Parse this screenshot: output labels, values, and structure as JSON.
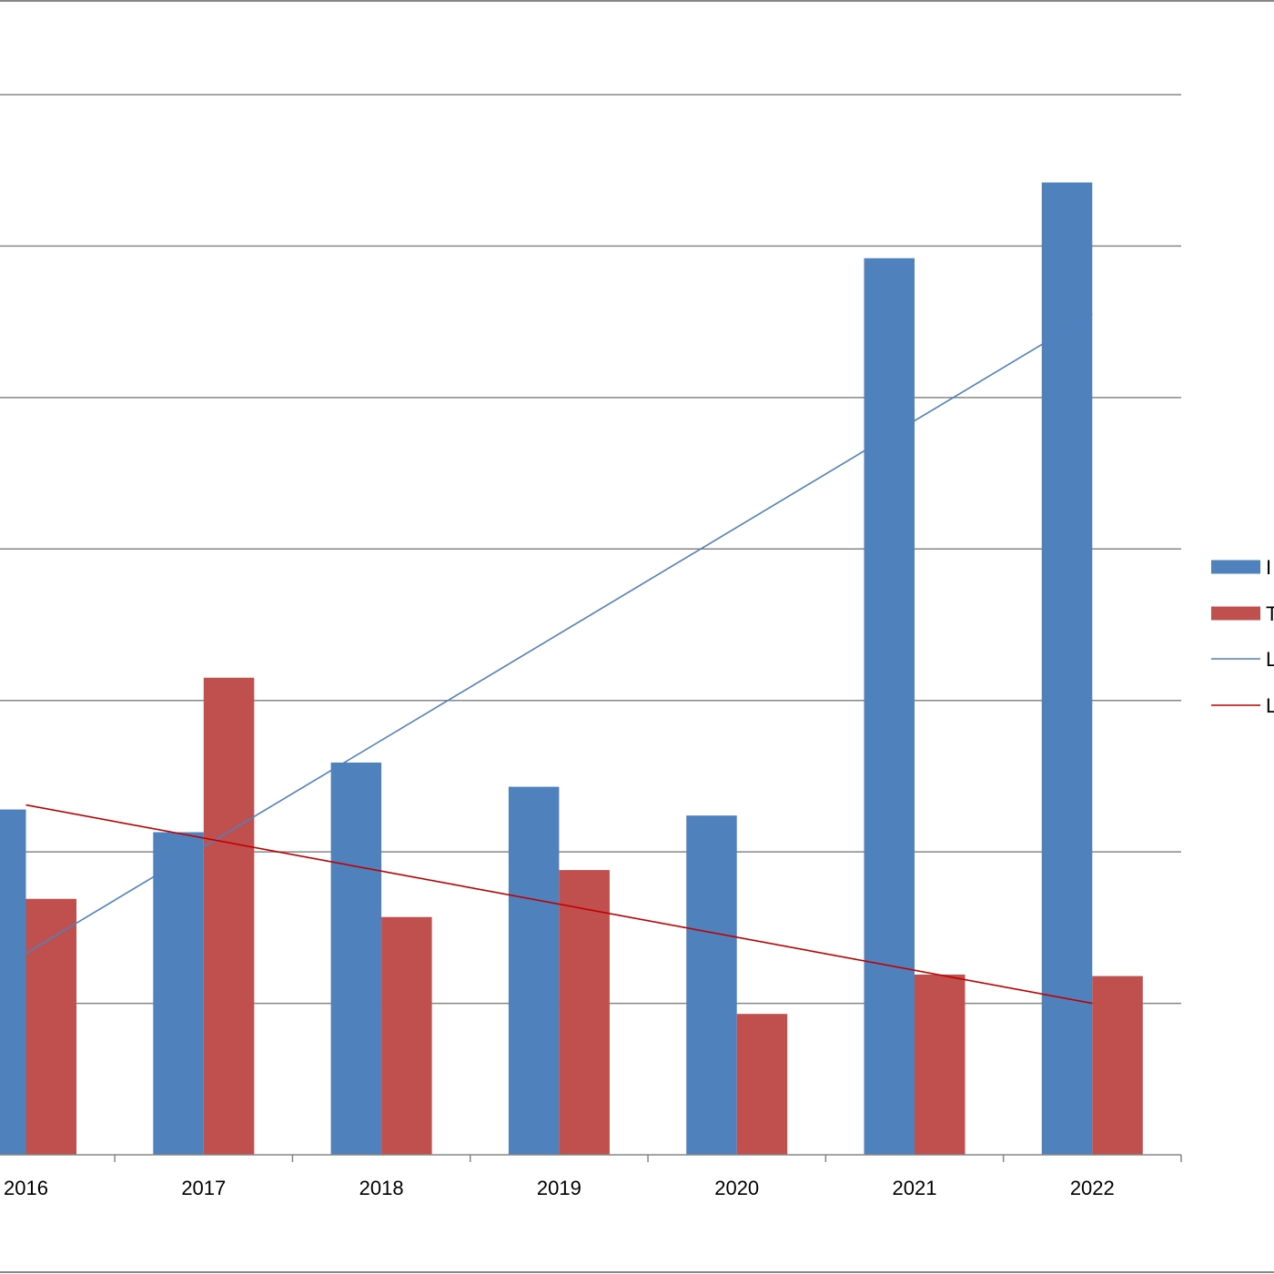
{
  "chart_data": {
    "type": "bar",
    "title": "",
    "xlabel": "",
    "ylabel": "",
    "categories": [
      "2016",
      "2017",
      "2018",
      "2019",
      "2020",
      "2021",
      "2022"
    ],
    "ylim": [
      0,
      7
    ],
    "grid": true,
    "legend_position": "right",
    "series": [
      {
        "name": "I",
        "kind": "bar",
        "color": "#4F81BD",
        "values": [
          2.28,
          2.13,
          2.59,
          2.43,
          2.24,
          5.92,
          6.42
        ]
      },
      {
        "name": "T",
        "kind": "bar",
        "color": "#C0504D",
        "values": [
          1.69,
          3.15,
          1.57,
          1.88,
          0.93,
          1.19,
          1.18
        ]
      },
      {
        "name": "L",
        "kind": "line",
        "color": "#4F81BD",
        "start": 1.33,
        "end": 5.55
      },
      {
        "name": "L",
        "kind": "line",
        "color": "#C00000",
        "start": 2.31,
        "end": 1.0
      }
    ]
  }
}
